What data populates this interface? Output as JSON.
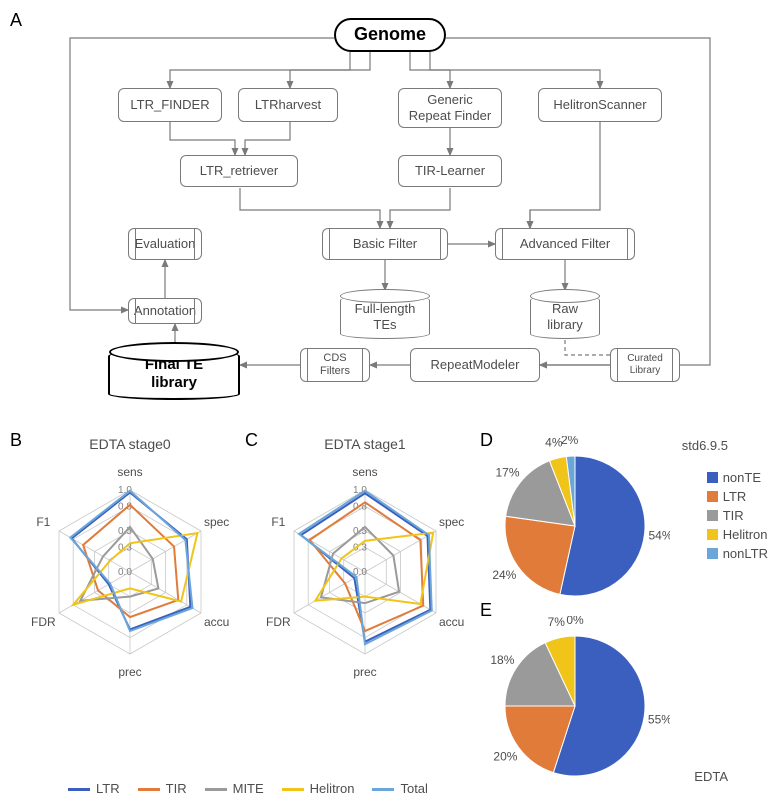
{
  "panels": {
    "A": "A",
    "B": "B",
    "C": "C",
    "D": "D",
    "E": "E"
  },
  "flowchart": {
    "nodes": {
      "genome": {
        "label": "Genome"
      },
      "ltr_finder": {
        "label": "LTR_FINDER"
      },
      "ltr_harvest": {
        "label": "LTRharvest"
      },
      "grf": {
        "label": "Generic\nRepeat Finder"
      },
      "helitron_scan": {
        "label": "HelitronScanner"
      },
      "ltr_retriever": {
        "label": "LTR_retriever"
      },
      "tir_learner": {
        "label": "TIR-Learner"
      },
      "basic_filter": {
        "label": "Basic Filter"
      },
      "adv_filter": {
        "label": "Advanced Filter"
      },
      "evaluation": {
        "label": "Evaluation"
      },
      "annotation": {
        "label": "Annotation"
      },
      "full_tes": {
        "label": "Full-length\nTEs"
      },
      "raw_lib": {
        "label": "Raw\nlibrary"
      },
      "cds_filters": {
        "label": "CDS\nFilters"
      },
      "repeatmodeler": {
        "label": "RepeatModeler"
      },
      "curated": {
        "label": "Curated\nLibrary"
      },
      "final": {
        "label": "Final TE\nlibrary"
      }
    }
  },
  "radar": {
    "axes": [
      "sens",
      "spec",
      "accu",
      "prec",
      "FDR",
      "F1"
    ],
    "ticks": [
      "1.0",
      "0.8",
      "0.5",
      "0.3",
      "0.0"
    ],
    "series_colors": {
      "LTR": "#3a5fbf",
      "TIR": "#e07b3a",
      "MITE": "#9a9a9a",
      "Helitron": "#f0c419",
      "Total": "#6aa6d9"
    },
    "stage0": {
      "title": "EDTA stage0",
      "data": {
        "LTR": [
          0.97,
          0.8,
          0.85,
          0.7,
          0.3,
          0.82
        ],
        "TIR": [
          0.82,
          0.62,
          0.68,
          0.55,
          0.45,
          0.66
        ],
        "MITE": [
          0.55,
          0.32,
          0.4,
          0.3,
          0.7,
          0.38
        ],
        "Helitron": [
          0.35,
          0.95,
          0.72,
          0.2,
          0.8,
          0.28
        ],
        "Total": [
          0.99,
          0.78,
          0.88,
          0.72,
          0.28,
          0.84
        ]
      }
    },
    "stage1": {
      "title": "EDTA stage1",
      "data": {
        "LTR": [
          0.96,
          0.88,
          0.92,
          0.85,
          0.15,
          0.9
        ],
        "TIR": [
          0.85,
          0.78,
          0.82,
          0.72,
          0.28,
          0.78
        ],
        "MITE": [
          0.55,
          0.4,
          0.48,
          0.38,
          0.62,
          0.45
        ],
        "Helitron": [
          0.38,
          0.96,
          0.78,
          0.3,
          0.7,
          0.33
        ],
        "Total": [
          0.99,
          0.9,
          0.94,
          0.88,
          0.12,
          0.93
        ]
      }
    },
    "legend": [
      "LTR",
      "TIR",
      "MITE",
      "Helitron",
      "Total"
    ]
  },
  "pies": {
    "colors": {
      "nonTE": "#3a5fbf",
      "LTR": "#e07b3a",
      "TIR": "#9a9a9a",
      "Helitron": "#f0c419",
      "nonLTR": "#6aa6d9"
    },
    "legend": [
      "nonTE",
      "LTR",
      "TIR",
      "Helitron",
      "nonLTR"
    ],
    "d": {
      "caption": "std6.9.5",
      "slices": [
        {
          "name": "nonTE",
          "value": 54,
          "label": "54%"
        },
        {
          "name": "LTR",
          "value": 24,
          "label": "24%"
        },
        {
          "name": "TIR",
          "value": 17,
          "label": "17%"
        },
        {
          "name": "Helitron",
          "value": 4,
          "label": "4%"
        },
        {
          "name": "nonLTR",
          "value": 2,
          "label": "2%"
        }
      ]
    },
    "e": {
      "caption": "EDTA",
      "slices": [
        {
          "name": "nonTE",
          "value": 55,
          "label": "55%"
        },
        {
          "name": "LTR",
          "value": 20,
          "label": "20%"
        },
        {
          "name": "TIR",
          "value": 18,
          "label": "18%"
        },
        {
          "name": "Helitron",
          "value": 7,
          "label": "7%"
        },
        {
          "name": "nonLTR",
          "value": 0,
          "label": "0%"
        }
      ]
    }
  }
}
